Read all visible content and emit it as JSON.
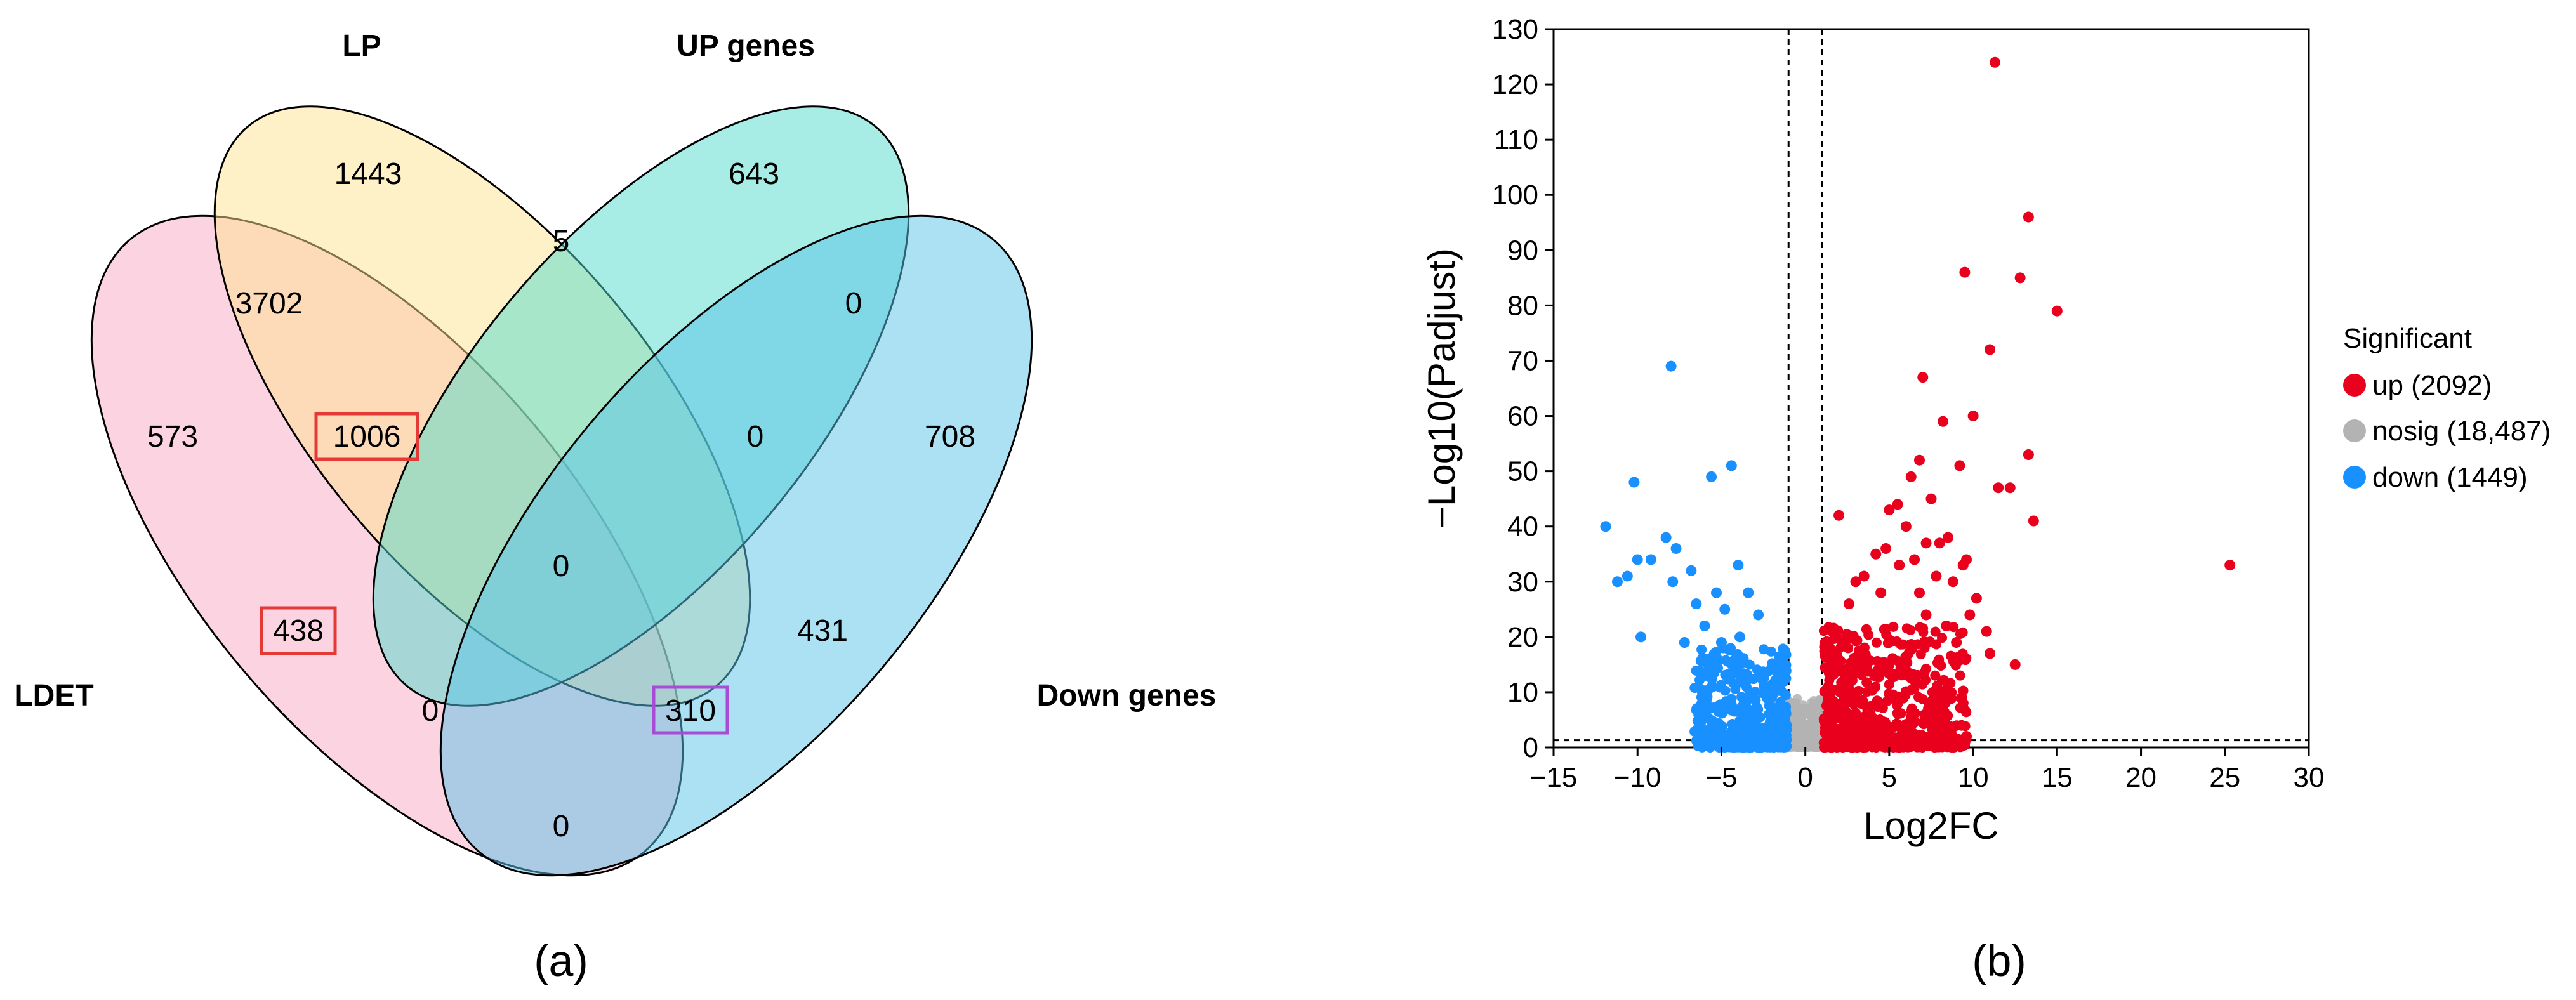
{
  "panels": {
    "a": "(a)",
    "b": "(b)"
  },
  "chart_data": [
    {
      "type": "venn",
      "panel": "(a)",
      "sets": [
        "LDET",
        "LP",
        "UP genes",
        "Down genes"
      ],
      "set_colors": {
        "LDET": "#f9a8c4",
        "LP": "#fde490",
        "UP genes": "#4fdccc",
        "Down genes": "#5ac3ea"
      },
      "regions": [
        {
          "id": "ldet_only",
          "sets": [
            "LDET"
          ],
          "value": "573"
        },
        {
          "id": "lp_only",
          "sets": [
            "LP"
          ],
          "value": "1443"
        },
        {
          "id": "up_only",
          "sets": [
            "UP genes"
          ],
          "value": "643"
        },
        {
          "id": "down_only",
          "sets": [
            "Down genes"
          ],
          "value": "708"
        },
        {
          "id": "ldet_lp",
          "sets": [
            "LDET",
            "LP"
          ],
          "value": "3702"
        },
        {
          "id": "lp_up",
          "sets": [
            "LP",
            "UP genes"
          ],
          "value": "5"
        },
        {
          "id": "up_down",
          "sets": [
            "UP genes",
            "Down genes"
          ],
          "value": "0"
        },
        {
          "id": "ldet_lp_up",
          "sets": [
            "LDET",
            "LP",
            "UP genes"
          ],
          "value": "1006",
          "highlight": "red"
        },
        {
          "id": "lp_up_down",
          "sets": [
            "LP",
            "UP genes",
            "Down genes"
          ],
          "value": "0"
        },
        {
          "id": "all_four",
          "sets": [
            "LDET",
            "LP",
            "UP genes",
            "Down genes"
          ],
          "value": "0"
        },
        {
          "id": "ldet_up",
          "sets": [
            "LDET",
            "UP genes"
          ],
          "value": "438",
          "highlight": "red"
        },
        {
          "id": "lp_down",
          "sets": [
            "LP",
            "Down genes"
          ],
          "value": "431"
        },
        {
          "id": "ldet_up_down",
          "sets": [
            "LDET",
            "UP genes",
            "Down genes"
          ],
          "value": "0"
        },
        {
          "id": "ldet_lp_down",
          "sets": [
            "LDET",
            "LP",
            "Down genes"
          ],
          "value": "310",
          "highlight": "purple"
        },
        {
          "id": "ldet_down",
          "sets": [
            "LDET",
            "Down genes"
          ],
          "value": "0"
        }
      ]
    },
    {
      "type": "scatter",
      "panel": "(b)",
      "title": "",
      "xlabel": "Log2FC",
      "ylabel": "−Log10(Padjust)",
      "xlim": [
        -15,
        30
      ],
      "ylim": [
        0,
        130
      ],
      "xticks": [
        -15,
        -10,
        -5,
        0,
        5,
        10,
        15,
        20,
        25,
        30
      ],
      "xtick_labels": [
        "−15",
        "−10",
        "−5",
        "0",
        "5",
        "10",
        "15",
        "20",
        "25",
        "30"
      ],
      "yticks": [
        0,
        10,
        20,
        30,
        40,
        50,
        60,
        70,
        80,
        90,
        100,
        110,
        120,
        130
      ],
      "threshold_x": [
        -1,
        1
      ],
      "threshold_y": 1.3,
      "legend_title": "Significant",
      "legend_position": "right",
      "series": [
        {
          "name": "up",
          "label": "up (2092)",
          "color": "#e8001c",
          "points": [
            [
              11.3,
              124
            ],
            [
              13.3,
              96
            ],
            [
              15.0,
              79
            ],
            [
              12.8,
              85
            ],
            [
              9.5,
              86
            ],
            [
              11.0,
              72
            ],
            [
              13.3,
              53
            ],
            [
              10.0,
              60
            ],
            [
              11.5,
              47
            ],
            [
              12.2,
              47
            ],
            [
              13.6,
              41
            ],
            [
              25.3,
              33
            ],
            [
              8.2,
              59
            ],
            [
              7.0,
              67
            ],
            [
              6.8,
              52
            ],
            [
              9.2,
              51
            ],
            [
              6.3,
              49
            ],
            [
              7.5,
              45
            ],
            [
              5.5,
              44
            ],
            [
              5.0,
              43
            ],
            [
              6.0,
              40
            ],
            [
              8.5,
              38
            ],
            [
              9.6,
              34
            ],
            [
              9.4,
              33
            ],
            [
              8.0,
              37
            ],
            [
              7.2,
              37
            ],
            [
              6.5,
              34
            ],
            [
              4.8,
              36
            ],
            [
              5.6,
              33
            ],
            [
              4.2,
              35
            ],
            [
              7.8,
              31
            ],
            [
              8.8,
              30
            ],
            [
              10.2,
              27
            ],
            [
              11.0,
              17
            ],
            [
              12.5,
              15
            ],
            [
              9.8,
              24
            ],
            [
              2.0,
              42
            ],
            [
              3.5,
              31
            ],
            [
              3.0,
              30
            ],
            [
              2.6,
              26
            ],
            [
              4.5,
              28
            ],
            [
              6.8,
              28
            ],
            [
              7.2,
              24
            ],
            [
              8.4,
              22
            ],
            [
              9.0,
              19
            ],
            [
              10.8,
              21
            ],
            [
              9.3,
              4
            ],
            [
              9.6,
              2
            ]
          ]
        },
        {
          "name": "nosig",
          "label": "nosig (18,487)",
          "color": "#b3b3b3",
          "points": [
            [
              -0.8,
              6
            ],
            [
              0.9,
              5
            ],
            [
              -0.3,
              3
            ],
            [
              0.2,
              2
            ],
            [
              0.6,
              1
            ],
            [
              -1.0,
              1
            ],
            [
              0.0,
              0.5
            ],
            [
              -0.5,
              0.8
            ],
            [
              1.2,
              1
            ],
            [
              -1.3,
              2
            ],
            [
              0.4,
              4
            ],
            [
              -0.1,
              7
            ]
          ]
        },
        {
          "name": "down",
          "label": "down (1449)",
          "color": "#1890ff",
          "points": [
            [
              -8.0,
              69
            ],
            [
              -4.4,
              51
            ],
            [
              -5.6,
              49
            ],
            [
              -10.2,
              48
            ],
            [
              -11.9,
              40
            ],
            [
              -8.3,
              38
            ],
            [
              -7.7,
              36
            ],
            [
              -10.0,
              34
            ],
            [
              -9.2,
              34
            ],
            [
              -6.8,
              32
            ],
            [
              -4.0,
              33
            ],
            [
              -10.6,
              31
            ],
            [
              -11.2,
              30
            ],
            [
              -7.9,
              30
            ],
            [
              -5.3,
              28
            ],
            [
              -3.4,
              28
            ],
            [
              -6.5,
              26
            ],
            [
              -4.8,
              25
            ],
            [
              -9.8,
              20
            ],
            [
              -7.2,
              19
            ],
            [
              -2.8,
              24
            ],
            [
              -6.0,
              22
            ],
            [
              -5.0,
              19
            ],
            [
              -3.9,
              20
            ]
          ]
        }
      ]
    }
  ]
}
